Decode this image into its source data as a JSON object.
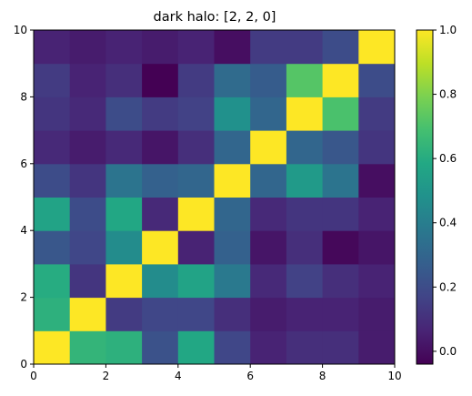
{
  "chart_data": {
    "type": "heatmap",
    "title": "dark halo: [2, 2, 0]",
    "xlabel": "",
    "ylabel": "",
    "xlim": [
      0,
      10
    ],
    "ylim": [
      0,
      10
    ],
    "x_ticks": [
      "0",
      "2",
      "4",
      "6",
      "8",
      "10"
    ],
    "y_ticks": [
      "0",
      "2",
      "4",
      "6",
      "8",
      "10"
    ],
    "colormap": "viridis",
    "colorbar_range": [
      -0.04,
      1.0
    ],
    "colorbar_ticks": [
      "0.0",
      "0.2",
      "0.4",
      "0.6",
      "0.8",
      "1.0"
    ],
    "grid": false,
    "rows_bottom_to_top": [
      [
        1.0,
        0.64,
        0.62,
        0.22,
        0.58,
        0.18,
        0.06,
        0.1,
        0.1,
        0.04
      ],
      [
        0.62,
        1.0,
        0.14,
        0.18,
        0.18,
        0.1,
        0.04,
        0.06,
        0.06,
        0.04
      ],
      [
        0.6,
        0.12,
        1.0,
        0.46,
        0.56,
        0.38,
        0.08,
        0.16,
        0.1,
        0.06
      ],
      [
        0.24,
        0.18,
        0.46,
        1.0,
        0.06,
        0.28,
        0.02,
        0.1,
        -0.02,
        0.02
      ],
      [
        0.56,
        0.2,
        0.58,
        0.08,
        1.0,
        0.3,
        0.08,
        0.12,
        0.12,
        0.06
      ],
      [
        0.2,
        0.12,
        0.36,
        0.28,
        0.3,
        1.0,
        0.3,
        0.52,
        0.36,
        0.0
      ],
      [
        0.08,
        0.04,
        0.08,
        0.02,
        0.1,
        0.3,
        1.0,
        0.3,
        0.24,
        0.12
      ],
      [
        0.12,
        0.08,
        0.2,
        0.14,
        0.16,
        0.48,
        0.3,
        1.0,
        0.7,
        0.14
      ],
      [
        0.14,
        0.06,
        0.1,
        -0.04,
        0.14,
        0.32,
        0.26,
        0.72,
        1.0,
        0.2
      ],
      [
        0.06,
        0.04,
        0.06,
        0.04,
        0.06,
        0.0,
        0.14,
        0.14,
        0.2,
        1.0
      ]
    ]
  }
}
